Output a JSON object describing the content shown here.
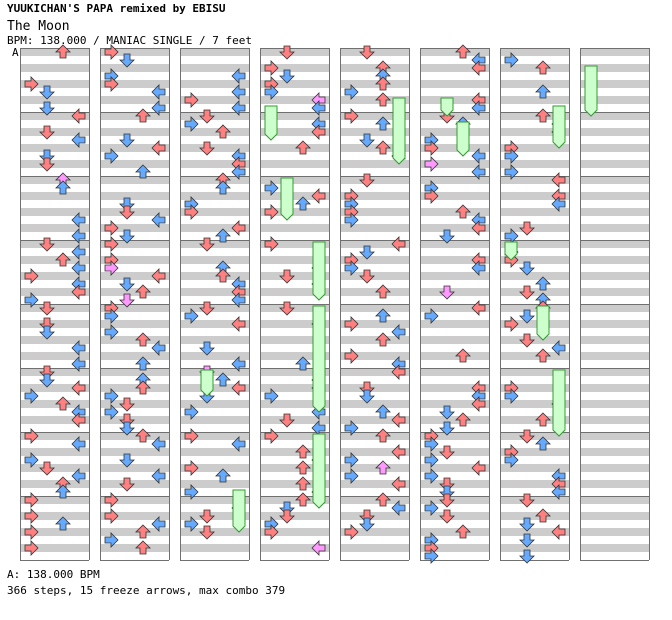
{
  "header": {
    "title_line": "YUUKICHAN'S PAPA remixed by EBISU",
    "song_name": "The Moon",
    "info_line": "BPM: 138.000 / MANIAC SINGLE / 7 feet",
    "section_marker": "A"
  },
  "footer": {
    "bpm_line": "A: 138.000 BPM",
    "stats_line": "366 steps, 15 freeze arrows, max combo 379"
  },
  "chart_data": {
    "type": "stepchart",
    "bpm": 138.0,
    "difficulty": "MANIAC SINGLE",
    "feet": 7,
    "steps": 366,
    "freeze_arrows": 15,
    "max_combo": 379,
    "measures_per_column": 8,
    "columns": 8,
    "colors": {
      "band": "#cccccc",
      "border": "#707070",
      "quarter_arrow": "#ff8080",
      "eighth_arrow": "#66aaff",
      "sixteenth_arrow": "#ff99ff",
      "freeze_body": "#ccffcc",
      "freeze_border": "#339933"
    }
  }
}
